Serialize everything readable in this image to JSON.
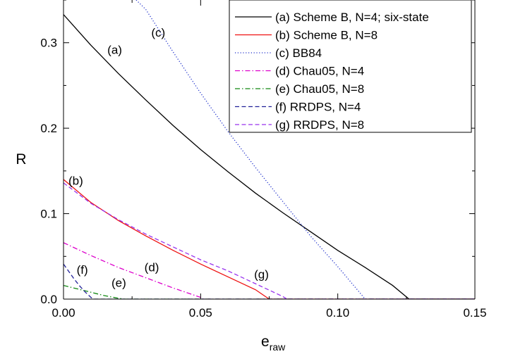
{
  "chart_data": {
    "type": "line",
    "xlabel": "e",
    "xlabel_sub": "raw",
    "ylabel": "R",
    "xlim": [
      0,
      0.15
    ],
    "ylim": [
      0,
      0.35
    ],
    "xticks": [
      {
        "value": 0.0,
        "label": "0.00"
      },
      {
        "value": 0.05,
        "label": "0.05"
      },
      {
        "value": 0.1,
        "label": "0.10"
      },
      {
        "value": 0.15,
        "label": "0.15"
      }
    ],
    "yticks": [
      {
        "value": 0.0,
        "label": "0.0"
      },
      {
        "value": 0.1,
        "label": "0.1"
      },
      {
        "value": 0.2,
        "label": "0.2"
      },
      {
        "value": 0.3,
        "label": "0.3"
      }
    ],
    "grid": false,
    "legend_position": "top-right",
    "series": [
      {
        "id": "a",
        "name": "(a) Scheme B, N=4; six-state",
        "tag": "(a)",
        "color": "#000000",
        "dash": "solid",
        "x": [
          0,
          0.01,
          0.02,
          0.03,
          0.04,
          0.05,
          0.06,
          0.07,
          0.08,
          0.09,
          0.1,
          0.11,
          0.12,
          0.126,
          0.15
        ],
        "y": [
          0.333,
          0.297,
          0.264,
          0.233,
          0.203,
          0.175,
          0.149,
          0.124,
          0.101,
          0.079,
          0.057,
          0.037,
          0.016,
          0.0,
          0.0
        ]
      },
      {
        "id": "b",
        "name": "(b) Scheme B, N=8",
        "tag": "(b)",
        "color": "#ee1111",
        "dash": "solid",
        "x": [
          0,
          0.01,
          0.02,
          0.03,
          0.04,
          0.05,
          0.06,
          0.07,
          0.075,
          0.15
        ],
        "y": [
          0.14,
          0.113,
          0.092,
          0.074,
          0.057,
          0.041,
          0.026,
          0.011,
          0.0,
          0.0
        ]
      },
      {
        "id": "c",
        "name": "(c) BB84",
        "tag": "(c)",
        "color": "#2233cc",
        "dash": "dotted",
        "x": [
          0.0265,
          0.03,
          0.04,
          0.05,
          0.06,
          0.07,
          0.08,
          0.09,
          0.1,
          0.11,
          0.15
        ],
        "y": [
          0.35,
          0.339,
          0.289,
          0.241,
          0.196,
          0.154,
          0.114,
          0.074,
          0.038,
          0.0,
          0.0
        ]
      },
      {
        "id": "d",
        "name": "(d) Chau05, N=4",
        "tag": "(d)",
        "color": "#dd00cc",
        "dash": "dashdot",
        "x": [
          0,
          0.01,
          0.02,
          0.03,
          0.04,
          0.05,
          0.051,
          0.15
        ],
        "y": [
          0.066,
          0.051,
          0.037,
          0.025,
          0.013,
          0.002,
          0.0,
          0.0
        ]
      },
      {
        "id": "e",
        "name": "(e) Chau05, N=8",
        "tag": "(e)",
        "color": "#118811",
        "dash": "dashdot",
        "x": [
          0,
          0.005,
          0.01,
          0.015,
          0.02,
          0.022,
          0.15
        ],
        "y": [
          0.016,
          0.012,
          0.008,
          0.004,
          0.001,
          0.0,
          0.0
        ]
      },
      {
        "id": "f",
        "name": "(f) RRDPS, N=4",
        "tag": "(f)",
        "color": "#222299",
        "dash": "dashed",
        "x": [
          0,
          0.002,
          0.004,
          0.006,
          0.008,
          0.01,
          0.011,
          0.15
        ],
        "y": [
          0.041,
          0.032,
          0.023,
          0.015,
          0.008,
          0.002,
          0.0,
          0.0
        ]
      },
      {
        "id": "g",
        "name": "(g) RRDPS, N=8",
        "tag": "(g)",
        "color": "#9933ee",
        "dash": "dashed",
        "x": [
          0,
          0.01,
          0.02,
          0.03,
          0.04,
          0.05,
          0.06,
          0.07,
          0.08,
          0.0815,
          0.15
        ],
        "y": [
          0.136,
          0.112,
          0.093,
          0.076,
          0.061,
          0.046,
          0.033,
          0.018,
          0.003,
          0.0,
          0.0
        ]
      }
    ],
    "curve_labels": [
      {
        "text": "(a)",
        "x": 0.016,
        "y": 0.287
      },
      {
        "text": "(b)",
        "x": 0.0018,
        "y": 0.134
      },
      {
        "text": "(c)",
        "x": 0.032,
        "y": 0.307
      },
      {
        "text": "(d)",
        "x": 0.0295,
        "y": 0.0325
      },
      {
        "text": "(e)",
        "x": 0.0175,
        "y": 0.0145
      },
      {
        "text": "(f)",
        "x": 0.0048,
        "y": 0.0295
      },
      {
        "text": "(g)",
        "x": 0.0695,
        "y": 0.0245
      }
    ]
  }
}
